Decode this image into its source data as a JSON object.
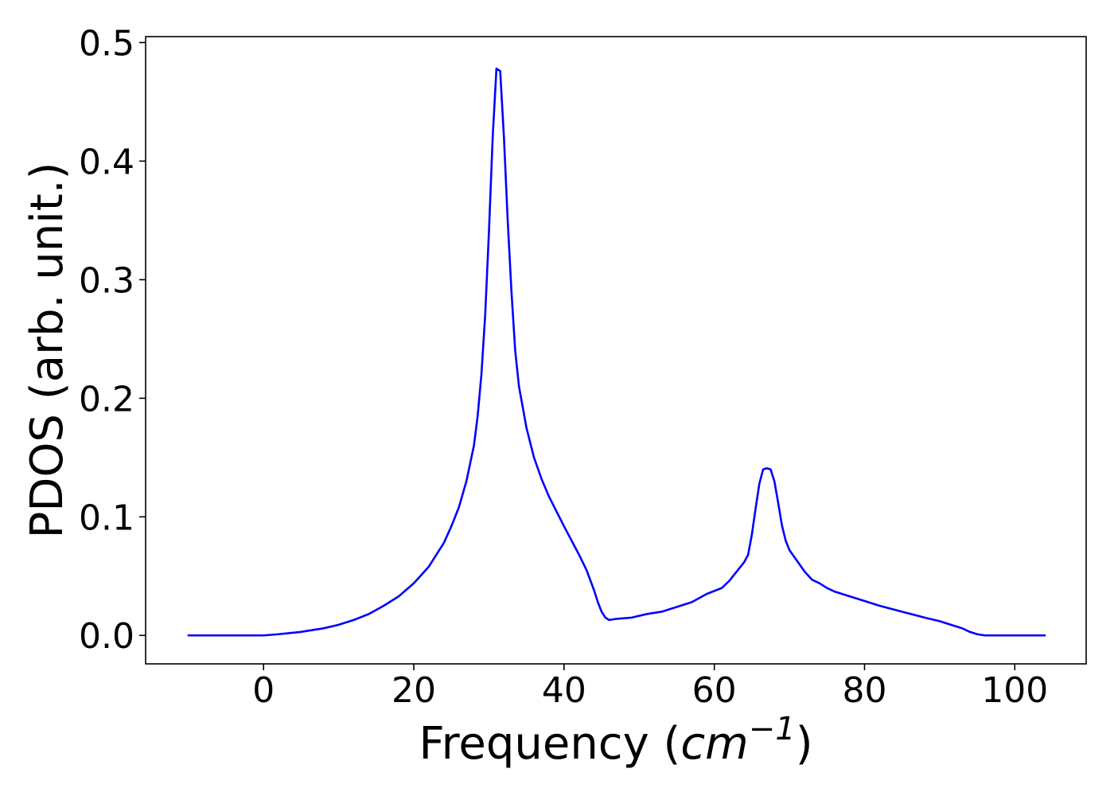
{
  "chart_data": {
    "type": "line",
    "title": "",
    "xlabel": "Frequency (cm⁻¹)",
    "xlabel_parts": {
      "prefix": "Frequency (",
      "unit_base": "cm",
      "unit_exponent": "−1",
      "suffix": ")"
    },
    "ylabel": "PDOS (arb. unit.)",
    "xlim": [
      -15.7,
      109.5
    ],
    "ylim": [
      -0.024,
      0.505
    ],
    "x_ticks": [
      0,
      20,
      40,
      60,
      80,
      100
    ],
    "x_tick_labels": [
      "0",
      "20",
      "40",
      "60",
      "80",
      "100"
    ],
    "y_ticks": [
      0.0,
      0.1,
      0.2,
      0.3,
      0.4,
      0.5
    ],
    "y_tick_labels": [
      "0.0",
      "0.1",
      "0.2",
      "0.3",
      "0.4",
      "0.5"
    ],
    "grid": false,
    "legend": "none",
    "series": [
      {
        "color": "#0000ff",
        "x": [
          -10,
          -5,
          0,
          2,
          5,
          8,
          10,
          12,
          14,
          16,
          18,
          20,
          22,
          24,
          25,
          26,
          27,
          28,
          28.5,
          29,
          29.5,
          30,
          30.5,
          31,
          31.5,
          32,
          32.5,
          33,
          33.5,
          34,
          35,
          36,
          37,
          38,
          40,
          42,
          43,
          44,
          44.5,
          45,
          45.5,
          46,
          47,
          49,
          51,
          53,
          55,
          57,
          59,
          61,
          62,
          63,
          64,
          64.5,
          65,
          65.5,
          66,
          66.5,
          67,
          67.5,
          68,
          68.5,
          69,
          69.5,
          70,
          71,
          72,
          73,
          74,
          75,
          76,
          77,
          78,
          80,
          82,
          85,
          88,
          90,
          92,
          93,
          94,
          95,
          96,
          97,
          100,
          104
        ],
        "y": [
          0.0,
          0.0,
          0.0,
          0.001,
          0.003,
          0.006,
          0.009,
          0.013,
          0.018,
          0.025,
          0.033,
          0.044,
          0.058,
          0.078,
          0.092,
          0.108,
          0.13,
          0.16,
          0.185,
          0.22,
          0.27,
          0.34,
          0.42,
          0.478,
          0.476,
          0.42,
          0.35,
          0.29,
          0.24,
          0.21,
          0.175,
          0.15,
          0.132,
          0.117,
          0.092,
          0.068,
          0.055,
          0.038,
          0.028,
          0.02,
          0.015,
          0.013,
          0.014,
          0.015,
          0.018,
          0.02,
          0.024,
          0.028,
          0.035,
          0.04,
          0.046,
          0.054,
          0.062,
          0.068,
          0.085,
          0.107,
          0.128,
          0.14,
          0.141,
          0.14,
          0.13,
          0.112,
          0.093,
          0.08,
          0.072,
          0.063,
          0.054,
          0.047,
          0.044,
          0.04,
          0.037,
          0.035,
          0.033,
          0.029,
          0.025,
          0.02,
          0.015,
          0.012,
          0.008,
          0.006,
          0.003,
          0.001,
          0.0,
          0.0,
          0.0,
          0.0
        ]
      }
    ]
  }
}
